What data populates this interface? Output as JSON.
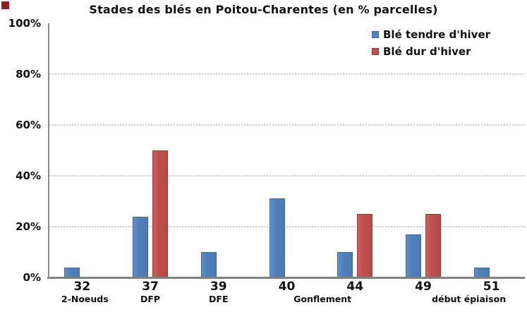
{
  "title": "Stades des blés en Poitou-Charentes (en % parcelles)",
  "colors": {
    "axis": "#808080",
    "gridline": "#c9c9c9",
    "text": "#111111",
    "corner_mark": "#8b2121"
  },
  "legend": {
    "items": [
      {
        "label": "Blé tendre d'hiver"
      },
      {
        "label": "Blé dur d'hiver"
      }
    ]
  },
  "chart_data": {
    "type": "bar",
    "title": "Stades des blés en Poitou-Charentes (en % parcelles)",
    "categories": [
      {
        "code": "32",
        "stage": "2-Noeuds"
      },
      {
        "code": "37",
        "stage": "DFP"
      },
      {
        "code": "39",
        "stage": "DFE"
      },
      {
        "code": "40",
        "stage": ""
      },
      {
        "code": "44",
        "stage": "Gonflement"
      },
      {
        "code": "49",
        "stage": ""
      },
      {
        "code": "51",
        "stage": "début épiaison"
      }
    ],
    "series": [
      {
        "name": "Blé tendre d'hiver",
        "color": "#4f81bd",
        "border": "#3a699e",
        "values": [
          4,
          24,
          10,
          31,
          10,
          17,
          4
        ]
      },
      {
        "name": "Blé dur d'hiver",
        "color": "#c0504d",
        "border": "#9a3a37",
        "values": [
          0,
          50,
          0,
          0,
          25,
          25,
          0
        ]
      }
    ],
    "xlabel": "",
    "ylabel": "",
    "ylim": [
      0,
      100
    ],
    "y_ticks": [
      {
        "value": 100,
        "label": "100%"
      },
      {
        "value": 80,
        "label": "80%"
      },
      {
        "value": 60,
        "label": "60%"
      },
      {
        "value": 40,
        "label": "40%"
      },
      {
        "value": 20,
        "label": "20%"
      },
      {
        "value": 0,
        "label": "0%"
      }
    ],
    "grid": "horizontal-dotted",
    "legend_position": "top-right-inside"
  }
}
